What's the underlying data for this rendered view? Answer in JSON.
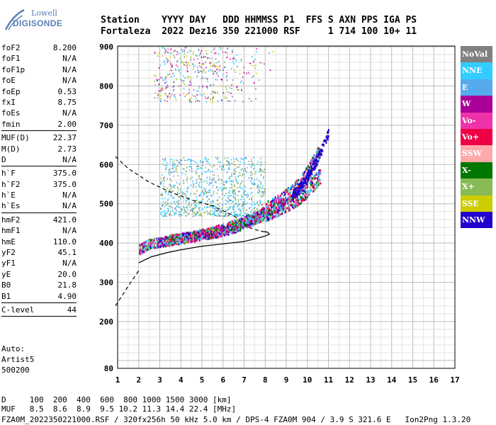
{
  "logo": {
    "top": "Lowell",
    "main": "DIGISONDE"
  },
  "header": {
    "row1": "Station    YYYY DAY   DDD HHMMSS P1  FFS S AXN PPS IGA PS",
    "row2": "Fortaleza  2022 Dez16 350 221000 RSF     1 714 100 10+ 11"
  },
  "params": [
    {
      "name": "foF2",
      "value": "8.200"
    },
    {
      "name": "foF1",
      "value": "N/A"
    },
    {
      "name": "foF1p",
      "value": "N/A"
    },
    {
      "name": "foE",
      "value": "N/A"
    },
    {
      "name": "foEp",
      "value": "0.53"
    },
    {
      "name": "fxI",
      "value": "8.75"
    },
    {
      "name": "foEs",
      "value": "N/A"
    },
    {
      "name": "fmin",
      "value": "2.00"
    },
    {
      "sep": true
    },
    {
      "name": "MUF(D)",
      "value": "22.37"
    },
    {
      "name": "M(D)",
      "value": "2.73"
    },
    {
      "name": "D",
      "value": "N/A"
    },
    {
      "sep": true
    },
    {
      "name": "h`F",
      "value": "375.0"
    },
    {
      "name": "h`F2",
      "value": "375.0"
    },
    {
      "name": "h`E",
      "value": "N/A"
    },
    {
      "name": "h`Es",
      "value": "N/A"
    },
    {
      "sep": true
    },
    {
      "name": "hmF2",
      "value": "421.0"
    },
    {
      "name": "hmF1",
      "value": "N/A"
    },
    {
      "name": "hmE",
      "value": "110.0"
    },
    {
      "name": "yF2",
      "value": "45.1"
    },
    {
      "name": "yF1",
      "value": "N/A"
    },
    {
      "name": "yE",
      "value": "20.0"
    },
    {
      "name": "B0",
      "value": "21.8"
    },
    {
      "name": "B1",
      "value": "4.90"
    },
    {
      "sep": true
    },
    {
      "name": "C-level",
      "value": "44"
    },
    {
      "sep": true
    }
  ],
  "auto": {
    "line1": "Auto:",
    "line2": "Artist5",
    "line3": "500200"
  },
  "footer": {
    "row1": "D     100  200  400  600  800 1000 1500 3000 [km]",
    "row2": "MUF   8.5  8.6  8.9  9.5 10.2 11.3 14.4 22.4 [MHz]",
    "row3": "FZA0M_2022350221000.RSF / 320fx256h 50 kHz 5.0 km / DPS-4 FZA0M 904 / 3.9 S 321.6 E   Ion2Png 1.3.20"
  },
  "legend": [
    {
      "label": "NoVal",
      "color": "#808080"
    },
    {
      "label": "NNE",
      "color": "#33ccff"
    },
    {
      "label": "E",
      "color": "#55aaee"
    },
    {
      "label": "W",
      "color": "#aa0099"
    },
    {
      "label": "Vo-",
      "color": "#ee33aa"
    },
    {
      "label": "Vo+",
      "color": "#ee0044"
    },
    {
      "label": "SSW",
      "color": "#ffaaaa"
    },
    {
      "label": "X-",
      "color": "#007700"
    },
    {
      "label": "X+",
      "color": "#88bb55"
    },
    {
      "label": "SSE",
      "color": "#cccc00"
    },
    {
      "label": "NNW",
      "color": "#2200cc"
    }
  ],
  "chart_data": {
    "type": "scatter",
    "xlim": [
      1,
      17
    ],
    "ylim": [
      80,
      900
    ],
    "xticks": [
      1,
      2,
      3,
      4,
      5,
      6,
      7,
      8,
      9,
      10,
      11,
      12,
      13,
      14,
      15,
      16,
      17
    ],
    "yticks": [
      80,
      200,
      300,
      400,
      500,
      600,
      700,
      800,
      900
    ],
    "grid": true,
    "legend_position": "right",
    "profile_curve": [
      [
        2.0,
        350
      ],
      [
        2.6,
        365
      ],
      [
        3.3,
        375
      ],
      [
        4.0,
        383
      ],
      [
        5.0,
        392
      ],
      [
        6.0,
        398
      ],
      [
        7.0,
        404
      ],
      [
        7.6,
        412
      ],
      [
        8.0,
        418
      ],
      [
        8.2,
        423
      ],
      [
        8.1,
        428
      ],
      [
        7.8,
        430
      ]
    ],
    "profile_extrapolation": [
      [
        0.9,
        240
      ],
      [
        1.5,
        290
      ],
      [
        2.0,
        330
      ]
    ],
    "topside_curve": [
      [
        0.9,
        620
      ],
      [
        1.5,
        590
      ],
      [
        2.5,
        555
      ],
      [
        3.5,
        530
      ],
      [
        4.5,
        510
      ],
      [
        5.5,
        495
      ],
      [
        6.5,
        470
      ],
      [
        7.2,
        440
      ],
      [
        7.8,
        430
      ]
    ],
    "o_trace": [
      [
        2.0,
        380
      ],
      [
        2.5,
        395
      ],
      [
        3.0,
        400
      ],
      [
        3.5,
        403
      ],
      [
        4.0,
        408
      ],
      [
        4.5,
        412
      ],
      [
        5.0,
        418
      ],
      [
        5.5,
        422
      ],
      [
        6.0,
        428
      ],
      [
        6.5,
        436
      ],
      [
        7.0,
        446
      ],
      [
        7.5,
        456
      ],
      [
        8.0,
        468
      ],
      [
        8.5,
        480
      ],
      [
        9.0,
        494
      ],
      [
        9.5,
        508
      ],
      [
        10.0,
        530
      ],
      [
        10.5,
        560
      ]
    ],
    "x_trace": [
      [
        3.0,
        400
      ],
      [
        3.5,
        406
      ],
      [
        4.0,
        410
      ],
      [
        4.5,
        414
      ],
      [
        5.0,
        420
      ],
      [
        5.5,
        426
      ],
      [
        6.0,
        434
      ],
      [
        6.5,
        442
      ],
      [
        7.0,
        452
      ],
      [
        7.5,
        464
      ],
      [
        8.0,
        478
      ],
      [
        8.5,
        494
      ],
      [
        9.0,
        512
      ],
      [
        9.5,
        536
      ],
      [
        10.0,
        572
      ],
      [
        10.5,
        620
      ],
      [
        11.0,
        686
      ]
    ],
    "spread_f_cloud": {
      "x_range": [
        3.0,
        8.0
      ],
      "y_range": [
        470,
        620
      ]
    },
    "upper_echo": {
      "x_range": [
        2.7,
        8.5
      ],
      "y_range": [
        760,
        900
      ]
    }
  }
}
